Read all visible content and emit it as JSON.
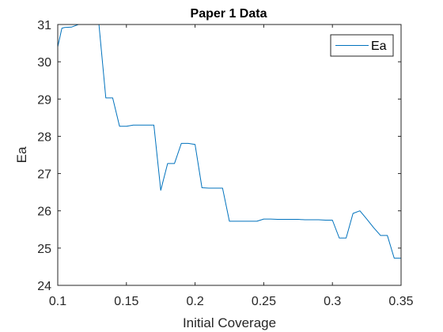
{
  "chart_data": {
    "type": "line",
    "title": "Paper 1 Data",
    "xlabel": "Initial Coverage",
    "ylabel": "Ea",
    "xlim": [
      0.1,
      0.35
    ],
    "ylim": [
      24,
      31
    ],
    "xticks": [
      "0.1",
      "0.15",
      "0.2",
      "0.25",
      "0.3",
      "0.35"
    ],
    "yticks": [
      "24",
      "25",
      "26",
      "27",
      "28",
      "29",
      "30",
      "31"
    ],
    "grid": false,
    "box": true,
    "legend": "top-right",
    "series": [
      {
        "name": "Ea",
        "color": "#0072BD",
        "x": [
          0.1,
          0.103,
          0.105,
          0.11,
          0.115,
          0.12,
          0.125,
          0.13,
          0.135,
          0.14,
          0.145,
          0.15,
          0.155,
          0.16,
          0.165,
          0.17,
          0.175,
          0.18,
          0.185,
          0.19,
          0.195,
          0.2,
          0.205,
          0.21,
          0.215,
          0.22,
          0.225,
          0.23,
          0.235,
          0.24,
          0.245,
          0.25,
          0.255,
          0.26,
          0.265,
          0.27,
          0.275,
          0.28,
          0.285,
          0.29,
          0.295,
          0.3,
          0.305,
          0.31,
          0.315,
          0.32,
          0.325,
          0.33,
          0.335,
          0.34,
          0.345,
          0.35
        ],
        "y": [
          30.4,
          30.9,
          30.92,
          30.93,
          31.0,
          31.0,
          31.0,
          31.0,
          29.03,
          29.03,
          28.27,
          28.27,
          28.3,
          28.3,
          28.3,
          28.3,
          26.55,
          27.27,
          27.27,
          27.81,
          27.81,
          27.78,
          26.62,
          26.61,
          26.61,
          26.61,
          25.72,
          25.72,
          25.72,
          25.72,
          25.72,
          25.78,
          25.78,
          25.77,
          25.77,
          25.77,
          25.77,
          25.76,
          25.76,
          25.76,
          25.75,
          25.75,
          25.27,
          25.27,
          25.93,
          26.0,
          25.78,
          25.55,
          25.34,
          25.34,
          24.73,
          24.73
        ]
      }
    ]
  }
}
